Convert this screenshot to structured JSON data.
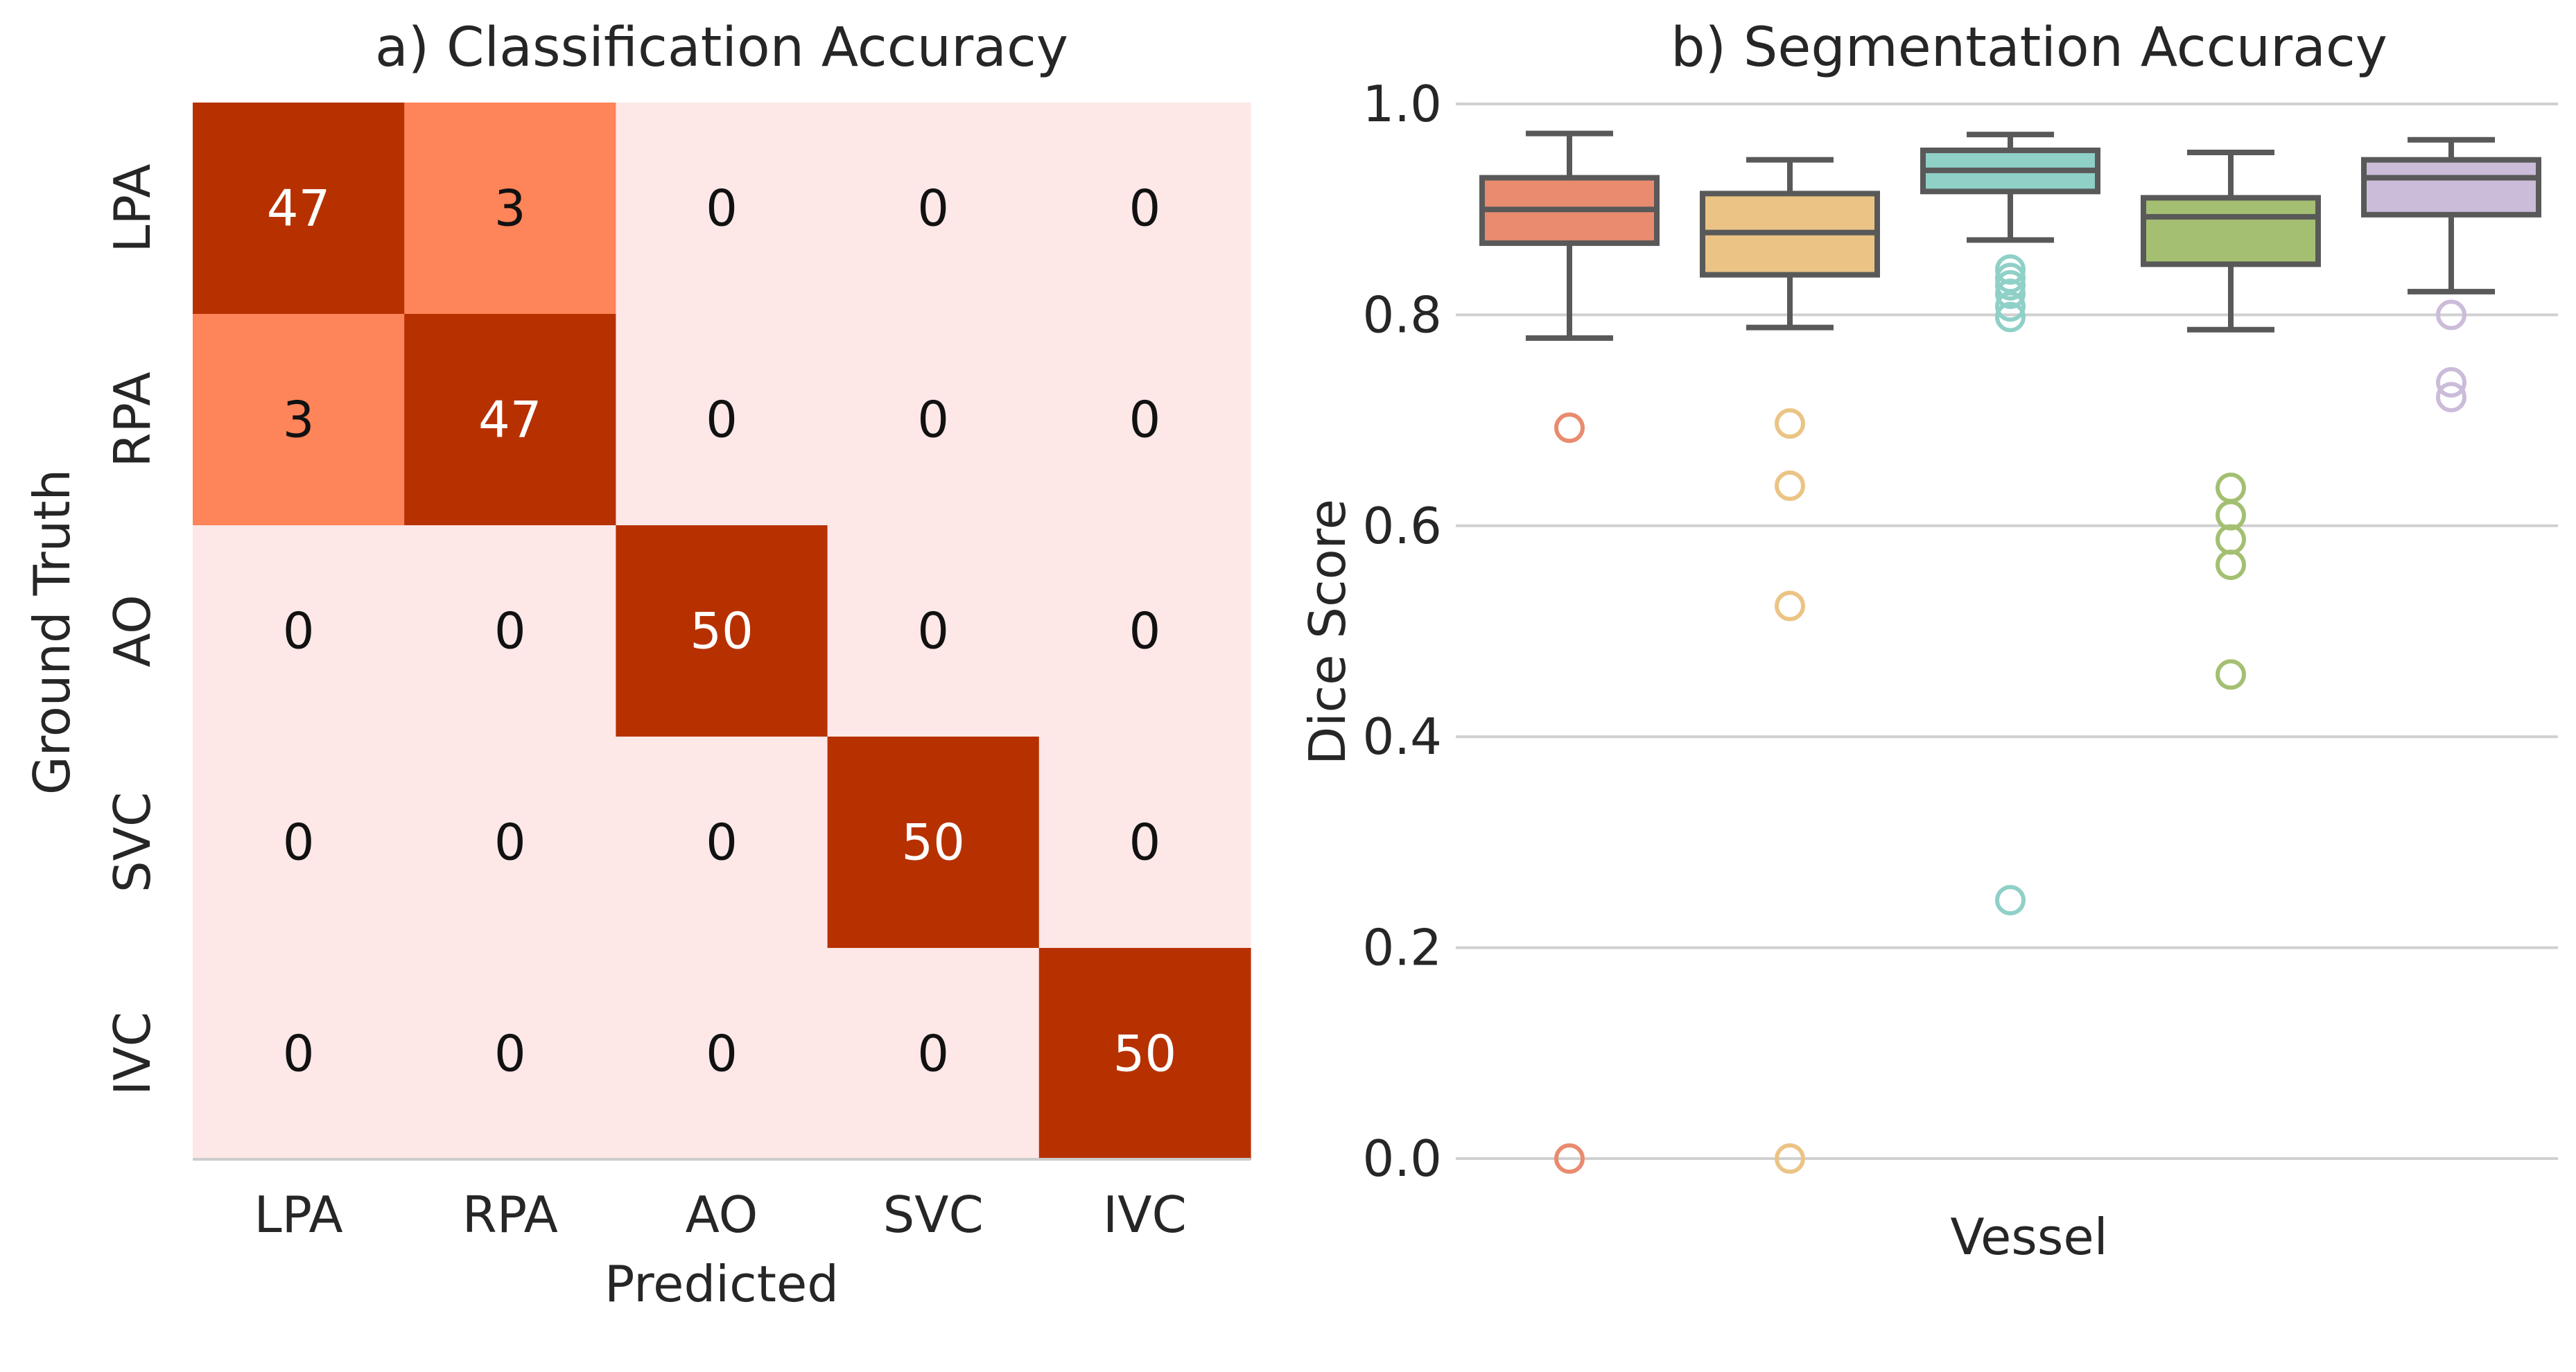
{
  "chart_data": [
    {
      "type": "heatmap",
      "title": "a) Classification Accuracy",
      "xlabel": "Predicted",
      "ylabel": "Ground Truth",
      "x_categories": [
        "LPA",
        "RPA",
        "AO",
        "SVC",
        "IVC"
      ],
      "y_categories": [
        "LPA",
        "RPA",
        "AO",
        "SVC",
        "IVC"
      ],
      "values": [
        [
          47,
          3,
          0,
          0,
          0
        ],
        [
          3,
          47,
          0,
          0,
          0
        ],
        [
          0,
          0,
          50,
          0,
          0
        ],
        [
          0,
          0,
          0,
          50,
          0
        ],
        [
          0,
          0,
          0,
          0,
          50
        ]
      ],
      "colors": {
        "high": "#b73100",
        "mid": "#fe8459",
        "low": "#fde7e7"
      }
    },
    {
      "type": "box",
      "title": "b) Segmentation Accuracy",
      "xlabel": "Vessel",
      "ylabel": "Dice Score",
      "ylim": [
        0.0,
        1.0
      ],
      "yticks": [
        "0.0",
        "0.2",
        "0.4",
        "0.6",
        "0.8",
        "1.0"
      ],
      "grid": true,
      "series": [
        {
          "color": "#e98b6f",
          "whisker_low": 0.778,
          "q1": 0.868,
          "median": 0.9,
          "q3": 0.93,
          "whisker_high": 0.972,
          "outliers": [
            0.693,
            0.0
          ]
        },
        {
          "color": "#ebc485",
          "whisker_low": 0.788,
          "q1": 0.838,
          "median": 0.878,
          "q3": 0.915,
          "whisker_high": 0.947,
          "outliers": [
            0.697,
            0.638,
            0.524,
            0.0
          ]
        },
        {
          "color": "#8fd0c7",
          "whisker_low": 0.871,
          "q1": 0.917,
          "median": 0.937,
          "q3": 0.956,
          "whisker_high": 0.971,
          "outliers": [
            0.843,
            0.835,
            0.828,
            0.82,
            0.808,
            0.798,
            0.245
          ]
        },
        {
          "color": "#a4bf72",
          "whisker_low": 0.786,
          "q1": 0.848,
          "median": 0.893,
          "q3": 0.911,
          "whisker_high": 0.954,
          "outliers": [
            0.636,
            0.61,
            0.587,
            0.563,
            0.459
          ]
        },
        {
          "color": "#cbbcd9",
          "whisker_low": 0.822,
          "q1": 0.895,
          "median": 0.93,
          "q3": 0.947,
          "whisker_high": 0.966,
          "outliers": [
            0.8,
            0.736,
            0.722
          ]
        }
      ]
    }
  ]
}
